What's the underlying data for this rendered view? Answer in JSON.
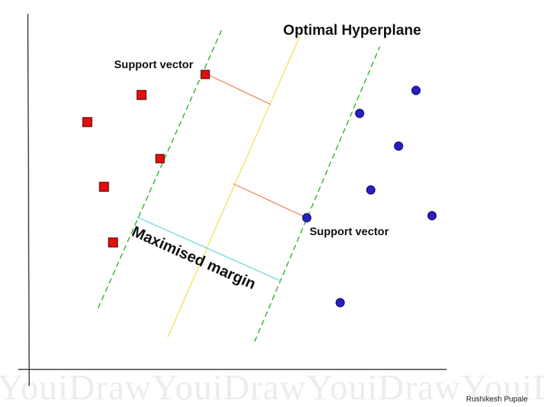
{
  "labels": {
    "title": "Optimal Hyperplane",
    "support_vector_top": "Support vector",
    "support_vector_bottom": "Support vector",
    "margin": "Maximised margin",
    "credit": "Rushikesh Pupale",
    "watermark": "YouiDrawYouiDrawYouiDrawYouiDra"
  },
  "colors": {
    "axis": "#333333",
    "hyperplane": "#f2e66a",
    "margin_boundary": "#33bb33",
    "distance_line": "#f08a6a",
    "margin_line": "#7fdde0",
    "class_a_fill": "#e0100f",
    "class_a_stroke": "#5a0000",
    "class_b_fill": "#2a1fc4",
    "class_b_stroke": "#0d0a66"
  },
  "icons": {
    "class_a_point": "red-square-icon",
    "class_b_point": "blue-circle-icon"
  }
}
